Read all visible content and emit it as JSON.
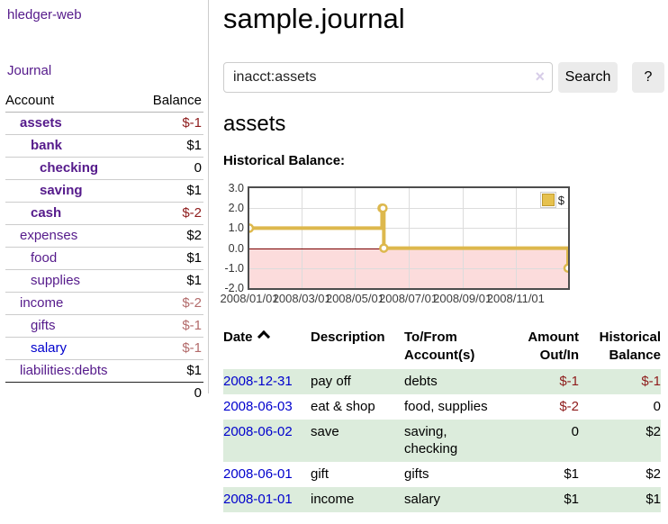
{
  "app": {
    "title": "hledger-web"
  },
  "sidebar": {
    "journal_link": "Journal",
    "headers": {
      "account": "Account",
      "balance": "Balance"
    },
    "accounts": [
      {
        "name": "assets",
        "balance": "$-1"
      },
      {
        "name": "bank",
        "balance": "$1"
      },
      {
        "name": "checking",
        "balance": "0"
      },
      {
        "name": "saving",
        "balance": "$1"
      },
      {
        "name": "cash",
        "balance": "$-2"
      },
      {
        "name": "expenses",
        "balance": "$2"
      },
      {
        "name": "food",
        "balance": "$1"
      },
      {
        "name": "supplies",
        "balance": "$1"
      },
      {
        "name": "income",
        "balance": "$-2"
      },
      {
        "name": "gifts",
        "balance": "$-1"
      },
      {
        "name": "salary",
        "balance": "$-1"
      },
      {
        "name": "liabilities:debts",
        "balance": "$1"
      }
    ],
    "total": "0"
  },
  "main": {
    "title": "sample.journal",
    "search": {
      "value": "inacct:assets",
      "clear_icon": "×",
      "search_button": "Search",
      "help_button": "?"
    },
    "account_heading": "assets",
    "chart_heading": "Historical Balance:"
  },
  "chart_data": {
    "type": "line",
    "step": true,
    "title": "Historical Balance",
    "series": [
      {
        "name": "$",
        "points": [
          [
            "2008-01-01",
            1
          ],
          [
            "2008-06-01",
            2
          ],
          [
            "2008-06-02",
            2
          ],
          [
            "2008-06-03",
            0
          ],
          [
            "2008-12-31",
            -1
          ]
        ]
      }
    ],
    "x_range": [
      "2008-01-01",
      "2008-12-31"
    ],
    "x_tick_labels": [
      "2008/01/01",
      "2008/03/01",
      "2008/05/01",
      "2008/07/01",
      "2008/09/01",
      "2008/11/01"
    ],
    "y_ticks": [
      3.0,
      2.0,
      1.0,
      0.0,
      -1.0,
      -2.0
    ],
    "ylim": [
      -2.0,
      3.0
    ],
    "grid": true,
    "negative_region": true,
    "legend": {
      "label": "$",
      "position": "top-right"
    },
    "line_color": "#ddb84d",
    "negative_fill": "#fcdcdc",
    "zero_line_color": "#7a0000"
  },
  "register": {
    "headers": {
      "date": "Date",
      "description": "Description",
      "to_from": [
        "To/From",
        "Account(s)"
      ],
      "amount": [
        "Amount",
        "Out/In"
      ],
      "balance": [
        "Historical",
        "Balance"
      ]
    },
    "rows": [
      {
        "date": "2008-12-31",
        "description": "pay off",
        "to_from": [
          "debts"
        ],
        "amount": "$-1",
        "balance": "$-1"
      },
      {
        "date": "2008-06-03",
        "description": "eat & shop",
        "to_from": [
          "food, supplies"
        ],
        "amount": "$-2",
        "balance": "0"
      },
      {
        "date": "2008-06-02",
        "description": "save",
        "to_from": [
          "saving,",
          "checking"
        ],
        "amount": "0",
        "balance": "$2"
      },
      {
        "date": "2008-06-01",
        "description": "gift",
        "to_from": [
          "gifts"
        ],
        "amount": "$1",
        "balance": "$2"
      },
      {
        "date": "2008-01-01",
        "description": "income",
        "to_from": [
          "salary"
        ],
        "amount": "$1",
        "balance": "$1"
      }
    ]
  },
  "colors": {
    "link_purple": "#551a8b",
    "link_blue": "#0000cd",
    "negative_strong": "#8e1b1b",
    "negative_muted": "#b36b6b",
    "row_green": "#dcecdc",
    "chart_line": "#ddb84d",
    "chart_negative_fill": "#fcdcdc",
    "zero_line": "#7a0000"
  }
}
